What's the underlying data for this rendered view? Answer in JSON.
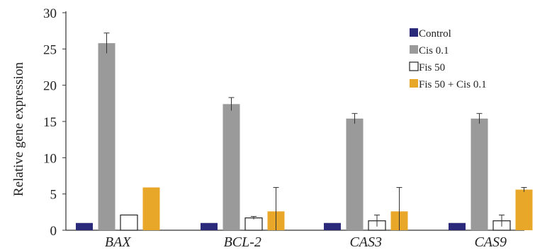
{
  "chart_data": {
    "type": "bar",
    "title": "",
    "xlabel": "",
    "ylabel": "Relative gene expression",
    "ylim": [
      0,
      30
    ],
    "yticks": [
      0,
      5,
      10,
      15,
      20,
      25,
      30
    ],
    "categories": [
      "BAX",
      "BCL-2",
      "CAS3",
      "CAS9"
    ],
    "series": [
      {
        "name": "Control",
        "color": "#2b2a7a",
        "fill": true,
        "values": [
          1.0,
          1.0,
          1.0,
          1.0
        ],
        "error": [
          0,
          0,
          0,
          0
        ]
      },
      {
        "name": "Cis 0.1",
        "color": "#9a9a9a",
        "fill": true,
        "values": [
          25.8,
          17.4,
          15.4,
          15.4
        ],
        "error": [
          1.4,
          0.9,
          0.7,
          0.7
        ]
      },
      {
        "name": "Fis 50",
        "color": "#ffffff",
        "fill": false,
        "values": [
          2.1,
          1.7,
          1.3,
          1.3
        ],
        "error": [
          0,
          0.2,
          0.8,
          0.8
        ]
      },
      {
        "name": "Fis 50 + Cis 0.1",
        "color": "#e9a72a",
        "fill": true,
        "values": [
          5.9,
          2.6,
          2.6,
          5.6
        ],
        "error": [
          0.0,
          3.3,
          3.3,
          0.3
        ]
      }
    ],
    "legend_position": "top-right",
    "grid": false
  }
}
